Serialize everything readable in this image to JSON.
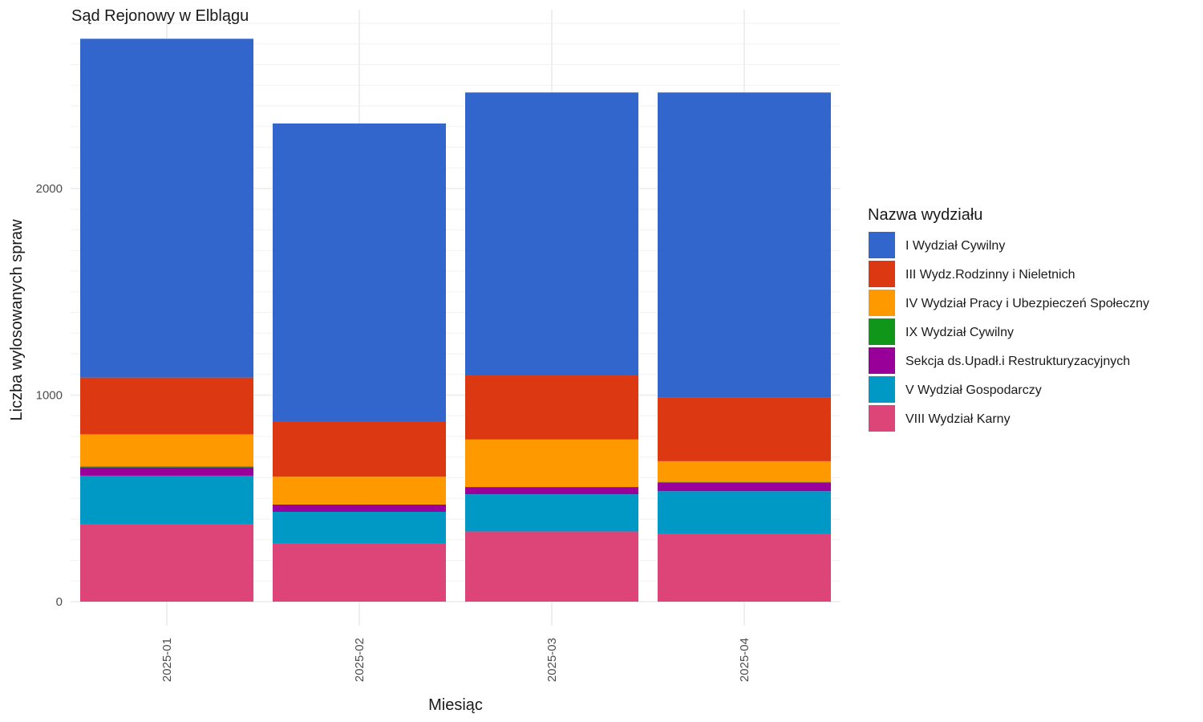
{
  "chart_data": {
    "type": "bar",
    "stacked": true,
    "title": "Sąd Rejonowy w Elblągu",
    "xlabel": "Miesiąc",
    "ylabel": "Liczba wylosowanych spraw",
    "categories": [
      "2025-01",
      "2025-02",
      "2025-03",
      "2025-04"
    ],
    "ylim": [
      0,
      2850
    ],
    "yticks": [
      0,
      1000,
      2000
    ],
    "ytick_labels": [
      "0",
      "1000",
      "2000"
    ],
    "grid": true,
    "legend": {
      "title": "Nazwa wydziału",
      "position": "right"
    },
    "series": [
      {
        "name": "VIII Wydział Karny",
        "color": "#DD4477",
        "values": [
          375,
          280,
          340,
          330
        ]
      },
      {
        "name": "V Wydział Gospodarczy",
        "color": "#0099C6",
        "values": [
          235,
          155,
          180,
          205
        ]
      },
      {
        "name": "Sekcja ds.Upadł.i Restrukturyzacyjnych",
        "color": "#990099",
        "values": [
          40,
          35,
          35,
          40
        ]
      },
      {
        "name": "IX Wydział Cywilny",
        "color": "#109618",
        "values": [
          5,
          0,
          0,
          5
        ]
      },
      {
        "name": "IV Wydział Pracy i Ubezpieczeń Społeczny",
        "color": "#FF9900",
        "values": [
          155,
          135,
          230,
          100
        ]
      },
      {
        "name": "III Wydz.Rodzinny i Nieletnich",
        "color": "#DC3912",
        "values": [
          275,
          265,
          310,
          310
        ]
      },
      {
        "name": "I Wydział Cywilny",
        "color": "#3366CC",
        "values": [
          1640,
          1445,
          1370,
          1475
        ]
      }
    ],
    "legend_order": [
      "I Wydział Cywilny",
      "III Wydz.Rodzinny i Nieletnich",
      "IV Wydział Pracy i Ubezpieczeń Społeczny",
      "IX Wydział Cywilny",
      "Sekcja ds.Upadł.i Restrukturyzacyjnych",
      "V Wydział Gospodarczy",
      "VIII Wydział Karny"
    ]
  }
}
